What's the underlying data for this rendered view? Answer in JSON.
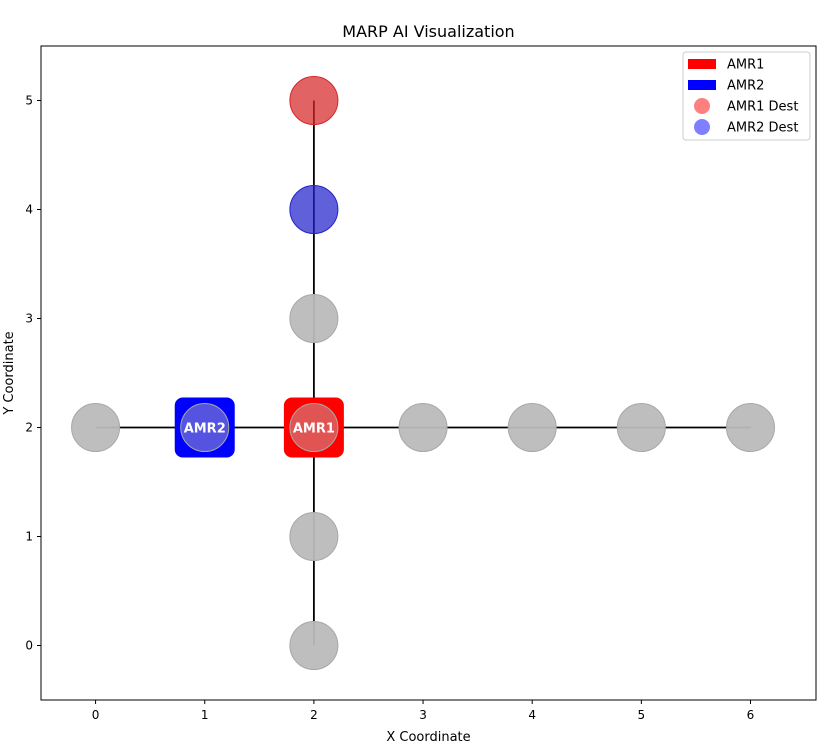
{
  "chart_data": {
    "type": "scatter",
    "title": "MARP AI Visualization",
    "xlabel": "X Coordinate",
    "ylabel": "Y Coordinate",
    "xlim": [
      -0.5,
      6.6
    ],
    "ylim": [
      -0.5,
      5.5
    ],
    "xticks": [
      0,
      1,
      2,
      3,
      4,
      5,
      6
    ],
    "yticks": [
      0,
      1,
      2,
      3,
      4,
      5
    ],
    "grid": false,
    "legend_position": "top-right",
    "edges": [
      {
        "from": [
          0,
          2
        ],
        "to": [
          6,
          2
        ]
      },
      {
        "from": [
          2,
          0
        ],
        "to": [
          2,
          5
        ]
      }
    ],
    "nodes": [
      {
        "x": 0,
        "y": 2
      },
      {
        "x": 1,
        "y": 2
      },
      {
        "x": 2,
        "y": 2
      },
      {
        "x": 3,
        "y": 2
      },
      {
        "x": 4,
        "y": 2
      },
      {
        "x": 5,
        "y": 2
      },
      {
        "x": 6,
        "y": 2
      },
      {
        "x": 2,
        "y": 0
      },
      {
        "x": 2,
        "y": 1
      },
      {
        "x": 2,
        "y": 3
      }
    ],
    "destinations": [
      {
        "name": "AMR1 Dest",
        "x": 2,
        "y": 5,
        "color": "#d62728"
      },
      {
        "name": "AMR2 Dest",
        "x": 2,
        "y": 4,
        "color": "#2222cc"
      }
    ],
    "robots": [
      {
        "name": "AMR1",
        "x": 2,
        "y": 2,
        "color": "#ff0000"
      },
      {
        "name": "AMR2",
        "x": 1,
        "y": 2,
        "color": "#0000ff"
      }
    ],
    "legend": [
      {
        "label": "AMR1",
        "kind": "patch",
        "color": "#ff0000"
      },
      {
        "label": "AMR2",
        "kind": "patch",
        "color": "#0000ff"
      },
      {
        "label": "AMR1 Dest",
        "kind": "marker",
        "color": "#ff7f7f"
      },
      {
        "label": "AMR2 Dest",
        "kind": "marker",
        "color": "#7f7fff"
      }
    ],
    "colors": {
      "node": "#bbbbbb",
      "node_edge": "#a8a8a8",
      "edge": "#000000"
    }
  }
}
